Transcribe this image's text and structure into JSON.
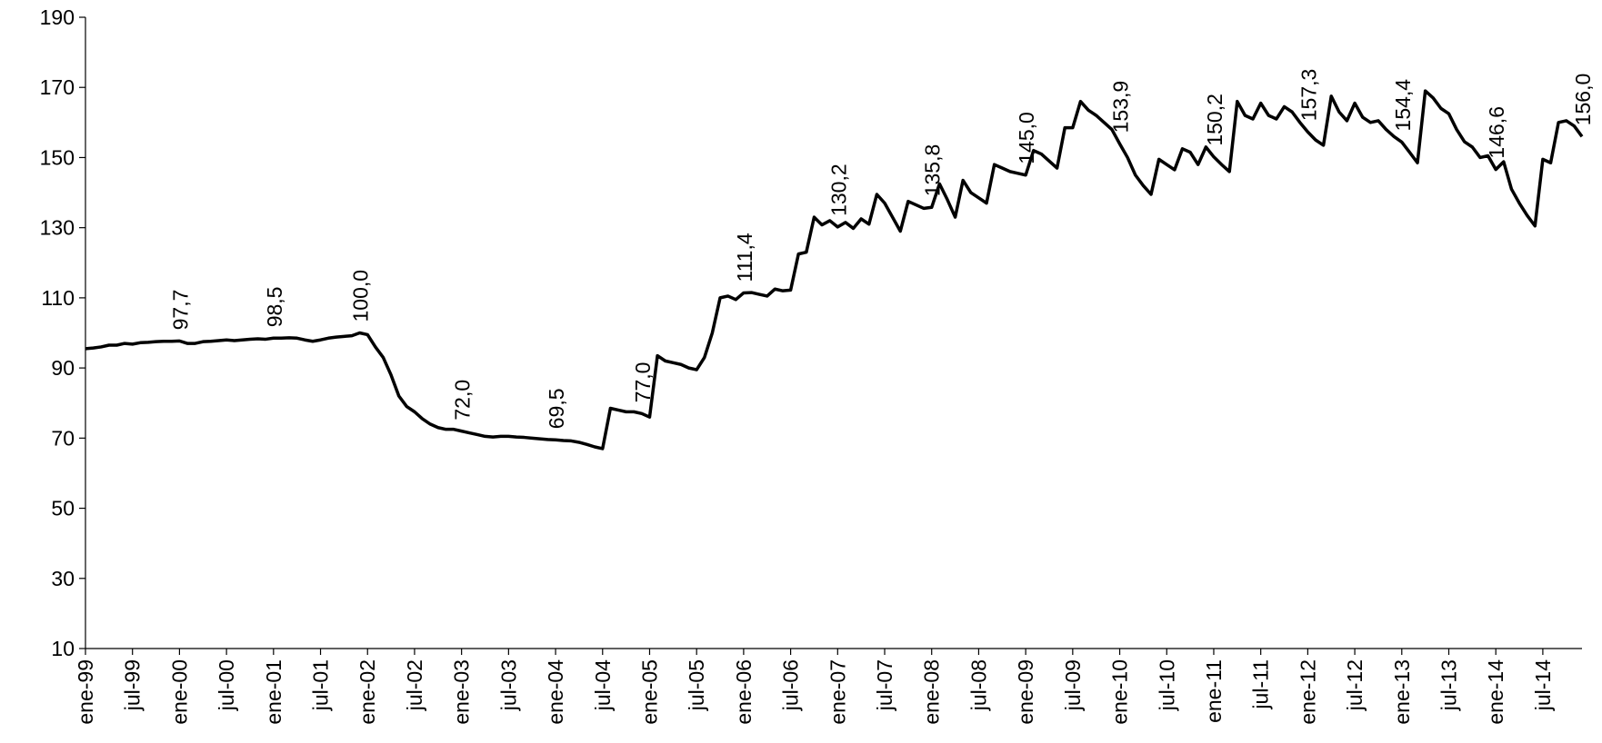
{
  "chart_data": {
    "type": "line",
    "categories": [
      "ene-99",
      null,
      null,
      null,
      null,
      null,
      "jul-99",
      null,
      null,
      null,
      null,
      null,
      "ene-00",
      null,
      null,
      null,
      null,
      null,
      "jul-00",
      null,
      null,
      null,
      null,
      null,
      "ene-01",
      null,
      null,
      null,
      null,
      null,
      "jul-01",
      null,
      null,
      null,
      null,
      null,
      "ene-02",
      null,
      null,
      null,
      null,
      null,
      "jul-02",
      null,
      null,
      null,
      null,
      null,
      "ene-03",
      null,
      null,
      null,
      null,
      null,
      "jul-03",
      null,
      null,
      null,
      null,
      null,
      "ene-04",
      null,
      null,
      null,
      null,
      null,
      "jul-04",
      null,
      null,
      null,
      null,
      null,
      "ene-05",
      null,
      null,
      null,
      null,
      null,
      "jul-05",
      null,
      null,
      null,
      null,
      null,
      "ene-06",
      null,
      null,
      null,
      null,
      null,
      "jul-06",
      null,
      null,
      null,
      null,
      null,
      "ene-07",
      null,
      null,
      null,
      null,
      null,
      "jul-07",
      null,
      null,
      null,
      null,
      null,
      "ene-08",
      null,
      null,
      null,
      null,
      null,
      "jul-08",
      null,
      null,
      null,
      null,
      null,
      "ene-09",
      null,
      null,
      null,
      null,
      null,
      "jul-09",
      null,
      null,
      null,
      null,
      null,
      "ene-10",
      null,
      null,
      null,
      null,
      null,
      "jul-10",
      null,
      null,
      null,
      null,
      null,
      "ene-11",
      null,
      null,
      null,
      null,
      null,
      "jul-11",
      null,
      null,
      null,
      null,
      null,
      "ene-12",
      null,
      null,
      null,
      null,
      null,
      "jul-12",
      null,
      null,
      null,
      null,
      null,
      "ene-13",
      null,
      null,
      null,
      null,
      null,
      "jul-13",
      null,
      null,
      null,
      null,
      null,
      "ene-14",
      null,
      null,
      null,
      null,
      null,
      "jul-14",
      null,
      null,
      null,
      null,
      null
    ],
    "values": [
      95.5,
      95.7,
      96,
      96.5,
      96.5,
      97,
      96.8,
      97.2,
      97.3,
      97.5,
      97.6,
      97.6,
      97.7,
      97,
      97,
      97.5,
      97.6,
      97.8,
      98,
      97.8,
      98,
      98.2,
      98.3,
      98.2,
      98.5,
      98.5,
      98.6,
      98.5,
      98,
      97.6,
      98,
      98.5,
      98.8,
      99,
      99.2,
      100.0,
      99.5,
      96,
      93,
      88,
      82,
      79,
      77.5,
      75.5,
      74,
      73,
      72.5,
      72.5,
      72.0,
      71.5,
      71,
      70.5,
      70.3,
      70.5,
      70.5,
      70.3,
      70.2,
      70,
      69.8,
      69.6,
      69.5,
      69.3,
      69.2,
      68.8,
      68.2,
      67.5,
      67,
      78.5,
      78,
      77.5,
      77.5,
      77.0,
      76,
      93.5,
      92,
      91.5,
      91,
      90,
      89.5,
      93,
      100,
      110,
      110.5,
      109.5,
      111.4,
      111.5,
      111,
      110.5,
      112.5,
      112,
      112.2,
      122.5,
      123,
      133,
      130.8,
      132,
      130.2,
      131.5,
      129.8,
      132.5,
      131,
      139.5,
      137,
      133,
      129,
      137.5,
      136.5,
      135.5,
      135.8,
      142.5,
      138,
      133,
      143.5,
      140,
      138.5,
      137,
      148,
      147,
      146,
      145.5,
      145.0,
      152,
      151,
      149,
      147,
      158.5,
      158.5,
      166,
      163.5,
      162,
      160,
      158,
      153.9,
      150,
      145,
      142,
      139.5,
      149.5,
      148,
      146.5,
      152.5,
      151.5,
      148,
      153,
      150.2,
      148,
      146,
      166,
      162,
      161,
      165.5,
      162,
      161,
      164.5,
      163,
      160,
      157.3,
      155,
      153.5,
      167.5,
      163,
      160.5,
      165.5,
      161.5,
      160,
      160.5,
      158,
      156,
      154.4,
      151.5,
      148.5,
      169,
      167,
      164,
      162.5,
      158,
      154.5,
      153,
      150,
      150.5,
      146.6,
      148.8,
      141,
      137,
      133.5,
      130.5,
      149.5,
      148.5,
      160,
      160.5,
      159,
      156.0
    ],
    "value_labels": [
      null,
      null,
      null,
      null,
      null,
      null,
      null,
      null,
      null,
      null,
      null,
      null,
      "97,7",
      null,
      null,
      null,
      null,
      null,
      null,
      null,
      null,
      null,
      null,
      null,
      "98,5",
      null,
      null,
      null,
      null,
      null,
      null,
      null,
      null,
      null,
      null,
      "100,0",
      null,
      null,
      null,
      null,
      null,
      null,
      null,
      null,
      null,
      null,
      null,
      null,
      "72,0",
      null,
      null,
      null,
      null,
      null,
      null,
      null,
      null,
      null,
      null,
      null,
      "69,5",
      null,
      null,
      null,
      null,
      null,
      null,
      null,
      null,
      null,
      null,
      "77,0",
      null,
      null,
      null,
      null,
      null,
      null,
      null,
      null,
      null,
      null,
      null,
      null,
      "111,4",
      null,
      null,
      null,
      null,
      null,
      null,
      null,
      null,
      null,
      null,
      null,
      "130,2",
      null,
      null,
      null,
      null,
      null,
      null,
      null,
      null,
      null,
      null,
      null,
      "135,8",
      null,
      null,
      null,
      null,
      null,
      null,
      null,
      null,
      null,
      null,
      null,
      "145,0",
      null,
      null,
      null,
      null,
      null,
      null,
      null,
      null,
      null,
      null,
      null,
      "153,9",
      null,
      null,
      null,
      null,
      null,
      null,
      null,
      null,
      null,
      null,
      null,
      "150,2",
      null,
      null,
      null,
      null,
      null,
      null,
      null,
      null,
      null,
      null,
      null,
      "157,3",
      null,
      null,
      null,
      null,
      null,
      null,
      null,
      null,
      null,
      null,
      null,
      "154,4",
      null,
      null,
      null,
      null,
      null,
      null,
      null,
      null,
      null,
      null,
      null,
      "146,6",
      null,
      null,
      null,
      null,
      null,
      null,
      null,
      null,
      null,
      null,
      "156,0"
    ],
    "color": "#000000",
    "ylim": [
      10,
      190
    ],
    "yticks": [
      10,
      30,
      50,
      70,
      90,
      110,
      130,
      150,
      170,
      190
    ]
  }
}
